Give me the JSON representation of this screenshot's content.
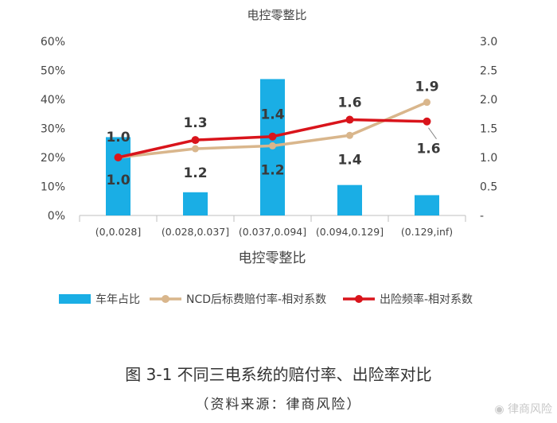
{
  "chart_data": {
    "type": "bar+line",
    "title": "电控零整比",
    "xlabel": "电控零整比",
    "categories": [
      "(0,0.028]",
      "(0.028,0.037]",
      "(0.037,0.094]",
      "(0.094,0.129]",
      "(0.129,inf)"
    ],
    "y_left": {
      "ylim": [
        0,
        0.6
      ],
      "ticks": [
        "0%",
        "10%",
        "20%",
        "30%",
        "40%",
        "50%",
        "60%"
      ]
    },
    "y_right": {
      "ylim": [
        0,
        3.0
      ],
      "ticks": [
        "-",
        "0.5",
        "1.0",
        "1.5",
        "2.0",
        "2.5",
        "3.0"
      ]
    },
    "grid": false,
    "legend_position": "bottom",
    "series": [
      {
        "name": "车年占比",
        "kind": "bar",
        "axis": "left",
        "color": "#1aaee5",
        "values": [
          0.27,
          0.08,
          0.47,
          0.105,
          0.07
        ]
      },
      {
        "name": "NCD后标费赔付率-相对系数",
        "kind": "line",
        "axis": "right",
        "color": "#d9b68c",
        "values": [
          1.0,
          1.15,
          1.2,
          1.38,
          1.95
        ],
        "data_labels": [
          "1.0",
          "1.2",
          "1.2",
          "1.4",
          "1.9"
        ]
      },
      {
        "name": "出险频率-相对系数",
        "kind": "line",
        "axis": "right",
        "color": "#d9141b",
        "values": [
          1.0,
          1.3,
          1.36,
          1.65,
          1.62
        ],
        "data_labels": [
          "1.0",
          "1.3",
          "1.4",
          "1.6",
          "1.6"
        ]
      }
    ]
  },
  "caption": {
    "title": "图 3-1 不同三电系统的赔付率、出险率对比",
    "source": "（资料来源：律商风险）"
  },
  "watermark": "律商风险"
}
